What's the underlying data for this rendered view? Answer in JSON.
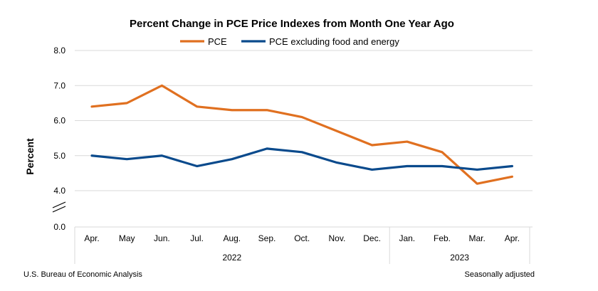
{
  "chart_data": {
    "type": "line",
    "title": "Percent Change in PCE Price Indexes from Month One Year Ago",
    "ylabel": "Percent",
    "xlabel": "",
    "categories": [
      "Apr.",
      "May",
      "Jun.",
      "Jul.",
      "Aug.",
      "Sep.",
      "Oct.",
      "Nov.",
      "Dec.",
      "Jan.",
      "Feb.",
      "Mar.",
      "Apr."
    ],
    "year_groups": [
      {
        "label": "2022",
        "count": 9
      },
      {
        "label": "2023",
        "count": 4
      }
    ],
    "series": [
      {
        "name": "PCE",
        "color": "#E07020",
        "values": [
          6.4,
          6.5,
          7.0,
          6.4,
          6.3,
          6.3,
          6.1,
          5.7,
          5.3,
          5.4,
          5.1,
          4.2,
          4.4
        ]
      },
      {
        "name": "PCE excluding food and energy",
        "color": "#0A4A8C",
        "values": [
          5.0,
          4.9,
          5.0,
          4.7,
          4.9,
          5.2,
          5.1,
          4.8,
          4.6,
          4.7,
          4.7,
          4.6,
          4.7
        ]
      }
    ],
    "y_ticks": [
      "8.0",
      "7.0",
      "6.0",
      "5.0",
      "4.0",
      "0.0"
    ],
    "y_tick_values": [
      8,
      7,
      6,
      5,
      4,
      0
    ],
    "ylim_upper_segment": [
      4,
      8
    ],
    "axis_break": true,
    "grid": true,
    "legend_position": "top-center"
  },
  "footer": {
    "source": "U.S. Bureau of Economic Analysis",
    "note": "Seasonally adjusted"
  }
}
